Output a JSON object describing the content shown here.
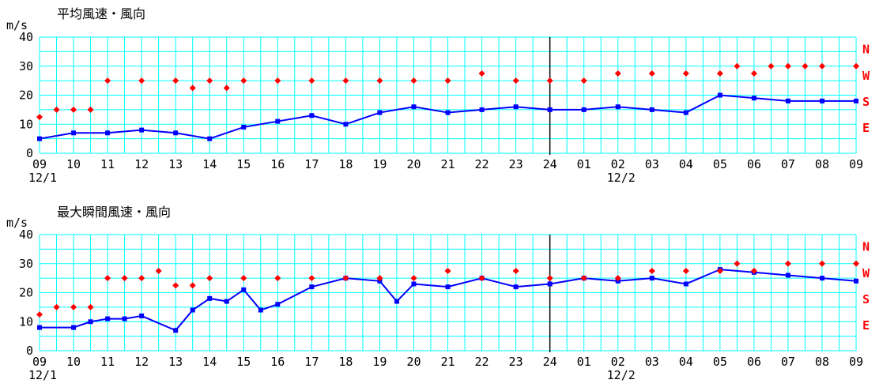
{
  "colors": {
    "grid": "#00ffff",
    "speed": "#0000ff",
    "direction": "#ff0000",
    "divider": "#000000"
  },
  "x_tick_labels": [
    "09",
    "10",
    "11",
    "12",
    "13",
    "14",
    "15",
    "16",
    "17",
    "18",
    "19",
    "20",
    "21",
    "22",
    "23",
    "24",
    "01",
    "02",
    "03",
    "04",
    "05",
    "06",
    "07",
    "08",
    "09"
  ],
  "date_labels": [
    "12/1",
    "12/2"
  ],
  "y_ticks": [
    "0",
    "10",
    "20",
    "30",
    "40"
  ],
  "direction_ticks": [
    "N",
    "W",
    "S",
    "E"
  ],
  "chart_data": [
    {
      "type": "line",
      "title": "平均風速・風向",
      "ylabel": "m/s",
      "ylim": [
        0,
        40
      ],
      "right_axis": {
        "labels": [
          "N",
          "W",
          "S",
          "E"
        ],
        "values": [
          36,
          27,
          18,
          9
        ]
      },
      "x_unit": "hours from 12/1 09:00 to 12/2 09:00",
      "series": [
        {
          "name": "speed",
          "marker": "square",
          "color": "#0000ff",
          "x": [
            0,
            1,
            2,
            3,
            4,
            5,
            6,
            7,
            8,
            9,
            10,
            11,
            12,
            13,
            14,
            15,
            16,
            17,
            18,
            19,
            20,
            21,
            22,
            23,
            24
          ],
          "y": [
            5,
            7,
            7,
            8,
            7,
            5,
            9,
            11,
            13,
            10,
            14,
            16,
            14,
            15,
            16,
            15,
            15,
            16,
            15,
            14,
            20,
            19,
            18,
            18,
            18
          ]
        },
        {
          "name": "direction",
          "marker": "diamond",
          "color": "#ff0000",
          "x": [
            0,
            0.5,
            1,
            1.5,
            2,
            3,
            4,
            4.5,
            5,
            5.5,
            6,
            7,
            8,
            9,
            10,
            11,
            12,
            13,
            14,
            15,
            16,
            17,
            18,
            19,
            20,
            20.5,
            21,
            21.5,
            22,
            22.5,
            23,
            24
          ],
          "y": [
            12.5,
            15,
            15,
            15,
            25,
            25,
            25,
            22.5,
            25,
            22.5,
            25,
            25,
            25,
            25,
            25,
            25,
            25,
            27.5,
            25,
            25,
            25,
            27.5,
            27.5,
            27.5,
            27.5,
            30,
            27.5,
            30,
            30,
            30,
            30,
            30
          ]
        }
      ]
    },
    {
      "type": "line",
      "title": "最大瞬間風速・風向",
      "ylabel": "m/s",
      "ylim": [
        0,
        40
      ],
      "right_axis": {
        "labels": [
          "N",
          "W",
          "S",
          "E"
        ],
        "values": [
          36,
          27,
          18,
          9
        ]
      },
      "x_unit": "hours from 12/1 09:00 to 12/2 09:00",
      "series": [
        {
          "name": "speed",
          "marker": "square",
          "color": "#0000ff",
          "x": [
            0,
            1,
            1.5,
            2,
            2.5,
            3,
            4,
            4.5,
            5,
            5.5,
            6,
            6.5,
            7,
            8,
            9,
            10,
            10.5,
            11,
            12,
            13,
            14,
            15,
            16,
            17,
            18,
            19,
            20,
            21,
            22,
            23,
            24
          ],
          "y": [
            8,
            8,
            10,
            11,
            11,
            12,
            7,
            14,
            18,
            17,
            21,
            14,
            16,
            22,
            25,
            24,
            17,
            23,
            22,
            25,
            22,
            23,
            25,
            24,
            25,
            23,
            28,
            27,
            26,
            25,
            24
          ]
        },
        {
          "name": "direction",
          "marker": "diamond",
          "color": "#ff0000",
          "x": [
            0,
            0.5,
            1,
            1.5,
            2,
            2.5,
            3,
            3.5,
            4,
            4.5,
            5,
            6,
            7,
            8,
            9,
            10,
            11,
            12,
            13,
            14,
            15,
            16,
            17,
            18,
            19,
            20,
            20.5,
            21,
            22,
            23,
            24
          ],
          "y": [
            12.5,
            15,
            15,
            15,
            25,
            25,
            25,
            27.5,
            22.5,
            22.5,
            25,
            25,
            25,
            25,
            25,
            25,
            25,
            27.5,
            25,
            27.5,
            25,
            25,
            25,
            27.5,
            27.5,
            27.5,
            30,
            27.5,
            30,
            30,
            30
          ]
        }
      ]
    }
  ]
}
